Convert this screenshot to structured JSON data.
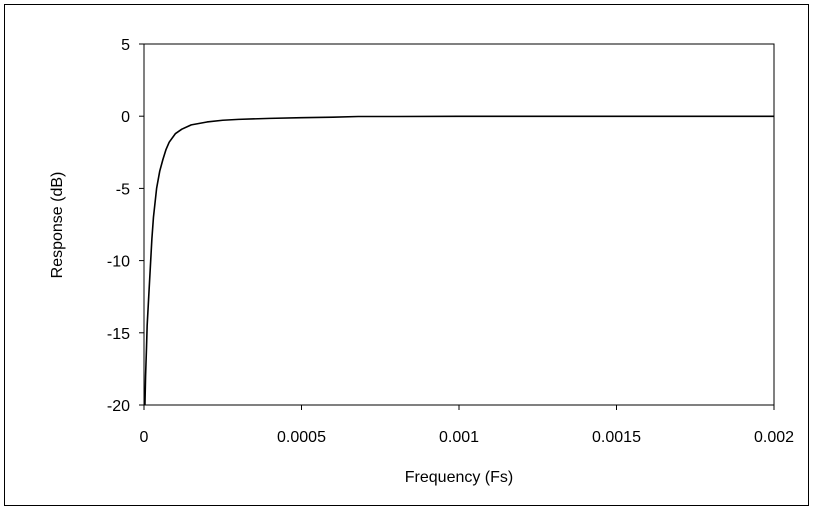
{
  "chart_data": {
    "type": "line",
    "title": "",
    "xlabel": "Frequency (Fs)",
    "ylabel": "Response (dB)",
    "xlim": [
      0,
      0.002
    ],
    "ylim": [
      -20,
      5
    ],
    "grid": false,
    "legend": "none",
    "x_ticks": [
      0,
      0.0005,
      0.001,
      0.0015,
      0.002
    ],
    "x_tick_labels": [
      "0",
      "0.0005",
      "0.001",
      "0.0015",
      "0.002"
    ],
    "y_ticks": [
      5,
      0,
      -5,
      -10,
      -15,
      -20
    ],
    "y_tick_labels": [
      "5",
      "0",
      "-5",
      "-10",
      "-15",
      "-20"
    ],
    "series": [
      {
        "color": "#000000",
        "x": [
          3e-06,
          5e-06,
          8e-06,
          1e-05,
          1.5e-05,
          2e-05,
          2.5e-05,
          3e-05,
          4e-05,
          5e-05,
          6e-05,
          7e-05,
          8e-05,
          0.0001,
          0.00012,
          0.00015,
          0.0002,
          0.00025,
          0.0003,
          0.0004,
          0.0005,
          0.0006,
          0.00068,
          0.0008,
          0.001,
          0.0015,
          0.002
        ],
        "y": [
          -20,
          -18,
          -16,
          -14.5,
          -12.5,
          -10.5,
          -8.5,
          -7,
          -5,
          -3.8,
          -3,
          -2.3,
          -1.8,
          -1.2,
          -0.9,
          -0.6,
          -0.4,
          -0.28,
          -0.22,
          -0.15,
          -0.1,
          -0.07,
          -0.02,
          -0.02,
          -0.01,
          -0.01,
          -0.01
        ]
      }
    ]
  }
}
